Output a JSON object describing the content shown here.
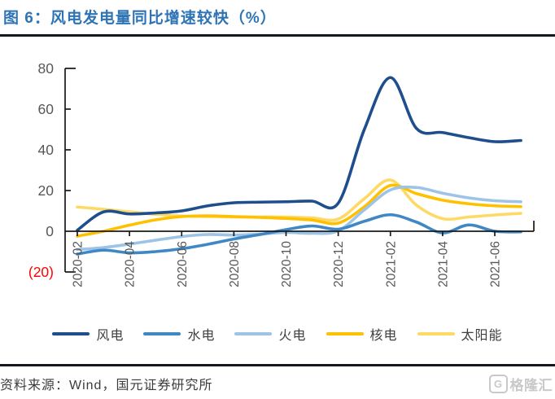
{
  "header": {
    "title": "图 6：风电发电量同比增速较快（%）"
  },
  "footer": {
    "source_label": "资料来源：Wind，国元证券研究所",
    "logo_letter": "G",
    "logo_text": "格隆汇"
  },
  "colors": {
    "title_blue": "#2E74B5",
    "rule_dark": "#131722",
    "axis": "#1a1a1a",
    "tick_label_gray": "#575757",
    "negative_tick_red": "#FF0000",
    "legend_text": "#3f3f3f",
    "watermark_gray": "#c9c9c9"
  },
  "chart_data": {
    "type": "line",
    "smooth": true,
    "title": "风电发电量同比增速较快（%）",
    "xlabel": "",
    "ylabel": "",
    "ylim": [
      -20,
      80
    ],
    "grid": false,
    "legend_position": "bottom",
    "x": [
      "2020-02",
      "2020-03",
      "2020-04",
      "2020-05",
      "2020-06",
      "2020-07",
      "2020-08",
      "2020-09",
      "2020-10",
      "2020-11",
      "2020-12",
      "2021-01",
      "2021-02",
      "2021-03",
      "2021-04",
      "2021-05",
      "2021-06",
      "2021-07"
    ],
    "x_tick_labels": [
      "2020-02",
      "2020-04",
      "2020-06",
      "2020-08",
      "2020-10",
      "2020-12",
      "2021-02",
      "2021-04",
      "2021-06"
    ],
    "y_ticks": [
      80,
      60,
      40,
      20,
      0,
      -20
    ],
    "y_tick_labels": [
      "80",
      "60",
      "40",
      "20",
      "0",
      "(20)"
    ],
    "series": [
      {
        "key": "wind",
        "name": "风电",
        "color": "#1F4E8C",
        "values": [
          0.5,
          9.5,
          8.5,
          9,
          10,
          12.5,
          14,
          14.3,
          14.5,
          14.8,
          13.8,
          50,
          75.5,
          50.5,
          48.5,
          46,
          44,
          44.6
        ]
      },
      {
        "key": "hydro",
        "name": "水电",
        "color": "#3F88C5",
        "values": [
          -11.2,
          -9.3,
          -10.6,
          -10,
          -8.6,
          -6.4,
          -3.8,
          -1.6,
          0.8,
          2.6,
          1,
          4.9,
          8.1,
          4.5,
          -0.8,
          3.1,
          0,
          -0.3
        ]
      },
      {
        "key": "thermal",
        "name": "火电",
        "color": "#9DC3E6",
        "values": [
          -9,
          -8,
          -6.3,
          -4.4,
          -2.6,
          -1.6,
          -1.9,
          -1.4,
          -0.6,
          -1,
          0.2,
          10.5,
          20.3,
          21.5,
          18.7,
          16.4,
          15,
          14.5
        ]
      },
      {
        "key": "nuclear",
        "name": "核电",
        "color": "#FFC000",
        "values": [
          -2.4,
          0,
          3,
          5.6,
          7.2,
          7.6,
          7.2,
          6.8,
          6.3,
          5.5,
          4,
          12,
          22.5,
          18.5,
          15.3,
          13.5,
          12.5,
          12.1
        ]
      },
      {
        "key": "solar",
        "name": "太阳能",
        "color": "#FFD966",
        "values": [
          11.9,
          10.8,
          9.6,
          8.3,
          7.5,
          7.2,
          7,
          7,
          7,
          6.6,
          6,
          16,
          25.2,
          12.8,
          6.2,
          7,
          8,
          8.8
        ]
      }
    ]
  }
}
